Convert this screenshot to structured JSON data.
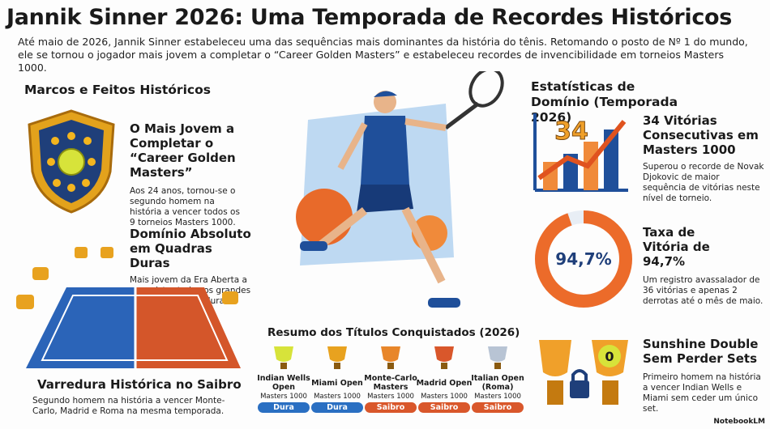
{
  "header": {
    "title": "Jannik Sinner 2026: Uma Temporada de Recordes Históricos",
    "intro": "Até maio de 2026, Jannik Sinner estabeleceu uma das sequências mais dominantes da história do tênis. Retomando o posto de Nº 1 do mundo, ele se tornou o jogador mais jovem a completar o “Career Golden Masters” e estabeleceu recordes de invencibilidade em torneios Masters 1000."
  },
  "left": {
    "heading": "Marcos e Feitos Históricos",
    "items": [
      {
        "title": "O Mais Jovem a Completar o “Career Golden Masters”",
        "text": "Aos 24 anos, tornou-se o segundo homem na história a vencer todos os 9 torneios Masters 1000."
      },
      {
        "title": "Domínio Absoluto em Quadras Duras",
        "text": "Mais jovem da Era Aberta a conquistar todos os grandes títulos de quadra dura (Slams e Masters)."
      },
      {
        "title": "Varredura Histórica no Saibro",
        "text": "Segundo homem na história a vencer Monte-Carlo, Madrid e Roma na mesma temporada."
      }
    ]
  },
  "titles": {
    "heading": "Resumo dos Títulos Conquistados (2026)",
    "items": [
      {
        "name": "Indian Wells Open",
        "level": "Masters 1000",
        "surface": "Dura"
      },
      {
        "name": "Miami Open",
        "level": "Masters 1000",
        "surface": "Dura"
      },
      {
        "name": "Monte-Carlo Masters",
        "level": "Masters 1000",
        "surface": "Saibro"
      },
      {
        "name": "Madrid Open",
        "level": "Masters 1000",
        "surface": "Saibro"
      },
      {
        "name": "Italian Open (Roma)",
        "level": "Masters 1000",
        "surface": "Saibro"
      }
    ]
  },
  "right": {
    "heading": "Estatísticas de Domínio (Temporada 2026)",
    "items": [
      {
        "badge": "34",
        "title": "34 Vitórias Consecutivas em Masters 1000",
        "text": "Superou o recorde de Novak Djokovic de maior sequência de vitórias neste nível de torneio."
      },
      {
        "badge": "94,7%",
        "title": "Taxa de Vitória de 94,7%",
        "text": "Um registro avassalador de 36 vitórias e apenas 2 derrotas até o mês de maio."
      },
      {
        "badge": "0",
        "title": "Sunshine Double Sem Perder Sets",
        "text": "Primeiro homem na história a vencer Indian Wells e Miami sem ceder um único set."
      }
    ]
  },
  "footer": {
    "brand": "NotebookLM"
  }
}
